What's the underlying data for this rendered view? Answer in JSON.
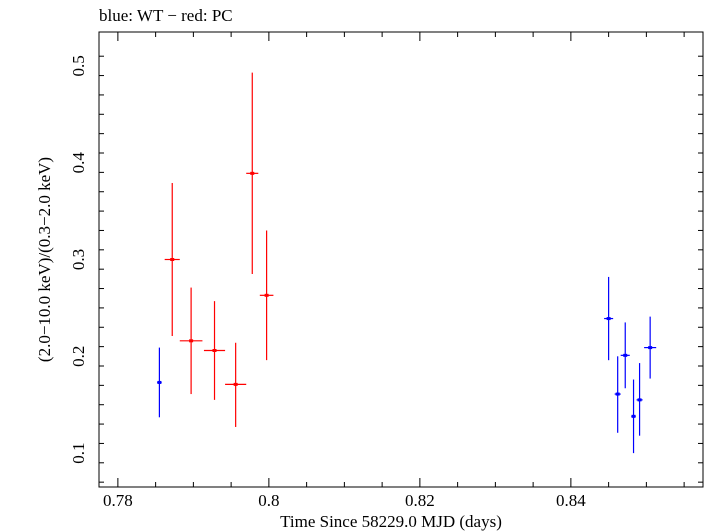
{
  "chart_data": {
    "type": "scatter",
    "title": "blue: WT − red: PC",
    "xlabel": "Time Since 58229.0 MJD (days)",
    "ylabel": "(2.0−10.0 keV)/(0.3−2.0 keV)",
    "xlim": [
      0.7775,
      0.8575
    ],
    "ylim": [
      0.065,
      0.535
    ],
    "xticks": [
      0.78,
      0.8,
      0.82,
      0.84
    ],
    "xtick_labels": [
      "0.78",
      "0.8",
      "0.82",
      "0.84"
    ],
    "yticks": [
      0.1,
      0.2,
      0.3,
      0.4,
      0.5
    ],
    "ytick_labels": [
      "0.1",
      "0.2",
      "0.3",
      "0.4",
      "0.5"
    ],
    "grid": false,
    "series": [
      {
        "color": "#0000ff",
        "points": [
          {
            "x": 0.7855,
            "y": 0.173,
            "xerr": 0.0003,
            "ylo": 0.137,
            "yhi": 0.209
          },
          {
            "x": 0.845,
            "y": 0.239,
            "xerr": 0.0006,
            "ylo": 0.196,
            "yhi": 0.282
          },
          {
            "x": 0.8462,
            "y": 0.161,
            "xerr": 0.0004,
            "ylo": 0.121,
            "yhi": 0.2
          },
          {
            "x": 0.8472,
            "y": 0.201,
            "xerr": 0.0006,
            "ylo": 0.167,
            "yhi": 0.235
          },
          {
            "x": 0.8483,
            "y": 0.138,
            "xerr": 0.0003,
            "ylo": 0.1,
            "yhi": 0.176
          },
          {
            "x": 0.8491,
            "y": 0.155,
            "xerr": 0.0004,
            "ylo": 0.118,
            "yhi": 0.193
          },
          {
            "x": 0.8505,
            "y": 0.209,
            "xerr": 0.0008,
            "ylo": 0.177,
            "yhi": 0.241
          }
        ]
      },
      {
        "color": "#ff0000",
        "points": [
          {
            "x": 0.7872,
            "y": 0.3,
            "xerr": 0.001,
            "ylo": 0.221,
            "yhi": 0.379
          },
          {
            "x": 0.7897,
            "y": 0.216,
            "xerr": 0.0015,
            "ylo": 0.161,
            "yhi": 0.271
          },
          {
            "x": 0.7928,
            "y": 0.206,
            "xerr": 0.0014,
            "ylo": 0.155,
            "yhi": 0.257
          },
          {
            "x": 0.7956,
            "y": 0.171,
            "xerr": 0.0014,
            "ylo": 0.127,
            "yhi": 0.214
          },
          {
            "x": 0.7978,
            "y": 0.389,
            "xerr": 0.0008,
            "ylo": 0.285,
            "yhi": 0.493
          },
          {
            "x": 0.7997,
            "y": 0.263,
            "xerr": 0.0009,
            "ylo": 0.196,
            "yhi": 0.33
          }
        ]
      }
    ]
  }
}
